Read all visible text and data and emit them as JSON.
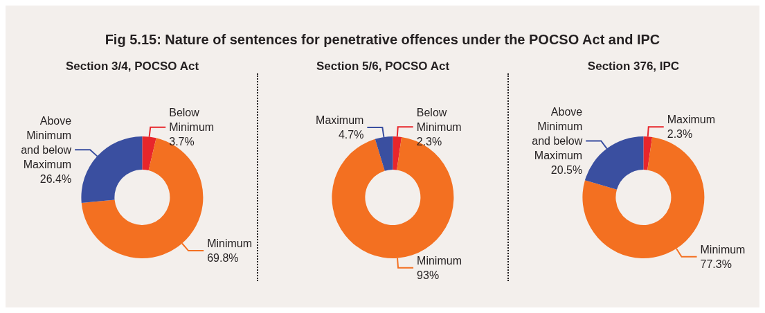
{
  "chart_data": [
    {
      "type": "donut",
      "title": "Fig 5.15: Nature of sentences for penetrative offences under the POCSO Act and IPC",
      "subtitle": "Section 3/4, POCSO Act",
      "categories": [
        "Below Minimum",
        "Minimum",
        "Above Minimum and below Maximum"
      ],
      "values": [
        3.7,
        69.8,
        26.4
      ],
      "value_labels": [
        "3.7%",
        "69.8%",
        "26.4%"
      ],
      "colors": [
        "#e8262b",
        "#f37021",
        "#3a4fa0"
      ],
      "legend": false
    },
    {
      "type": "donut",
      "subtitle": "Section 5/6, POCSO Act",
      "categories": [
        "Below Minimum",
        "Minimum",
        "Maximum"
      ],
      "values": [
        2.3,
        93,
        4.7
      ],
      "value_labels": [
        "2.3%",
        "93%",
        "4.7%"
      ],
      "colors": [
        "#e8262b",
        "#f37021",
        "#3a4fa0"
      ],
      "legend": false
    },
    {
      "type": "donut",
      "subtitle": "Section 376, IPC",
      "categories": [
        "Maximum",
        "Minimum",
        "Above Minimum and below Maximum"
      ],
      "values": [
        2.3,
        77.3,
        20.5
      ],
      "value_labels": [
        "2.3%",
        "77.3%",
        "20.5%"
      ],
      "colors": [
        "#e8262b",
        "#f37021",
        "#3a4fa0"
      ],
      "legend": false
    }
  ]
}
